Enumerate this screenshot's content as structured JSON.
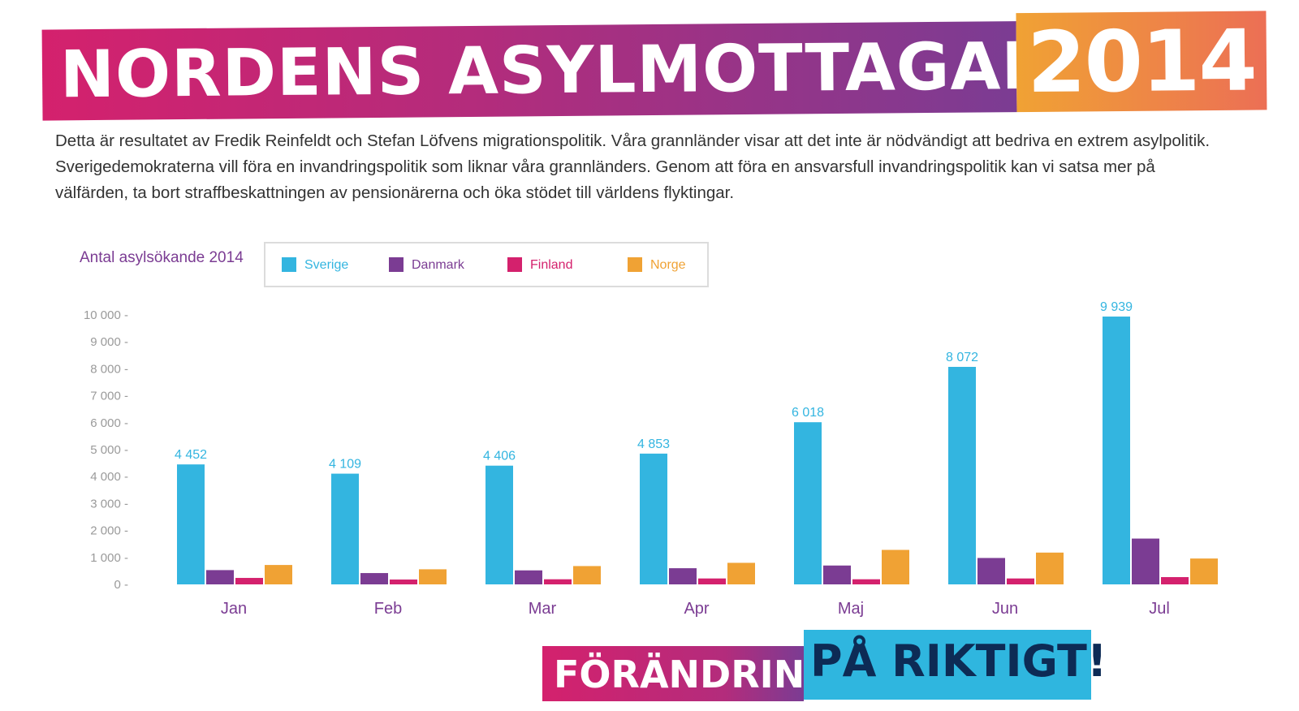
{
  "header": {
    "title": "NORDENS ASYLMOTTAGANDE",
    "year": "2014"
  },
  "intro": "Detta är resultatet av Fredik Reinfeldt och Stefan Löfvens migrationspolitik. Våra grannländer visar att det inte är nödvändigt att bedriva en extrem asylpolitik. Sverigedemokraterna vill föra en invandringspolitik som liknar våra grannländers. Genom att föra en ansvarsfull invandringspolitik kan vi satsa mer på välfärden, ta bort straffbeskattningen av pensionärerna och öka stödet till världens flyktingar.",
  "footer": {
    "left": "FÖRÄNDRING",
    "right": "PÅ RIKTIGT!"
  },
  "chart_data": {
    "type": "bar",
    "ylabel": "Antal asylsökande 2014",
    "ylim": [
      0,
      10000
    ],
    "yticks": [
      "10 000 -",
      "9 000 -",
      "8 000 -",
      "7 000 -",
      "6 000 -",
      "5 000 -",
      "4 000 -",
      "3 000 -",
      "2 000 -",
      "1 000 -",
      "0 -"
    ],
    "ytick_values": [
      10000,
      9000,
      8000,
      7000,
      6000,
      5000,
      4000,
      3000,
      2000,
      1000,
      0
    ],
    "categories": [
      "Jan",
      "Feb",
      "Mar",
      "Apr",
      "Maj",
      "Jun",
      "Jul"
    ],
    "legend_placement": "top-left",
    "grid": false,
    "series": [
      {
        "name": "Sverige",
        "color": "#33b5e0",
        "values": [
          4452,
          4109,
          4406,
          4853,
          6018,
          8072,
          9939
        ],
        "labels": [
          "4 452",
          "4 109",
          "4 406",
          "4 853",
          "6 018",
          "8 072",
          "9 939"
        ]
      },
      {
        "name": "Danmark",
        "color": "#7b3c93",
        "values": [
          530,
          420,
          520,
          600,
          700,
          980,
          1700
        ]
      },
      {
        "name": "Finland",
        "color": "#d4216d",
        "values": [
          240,
          180,
          190,
          220,
          190,
          220,
          270
        ]
      },
      {
        "name": "Norge",
        "color": "#f0a234",
        "values": [
          720,
          560,
          680,
          800,
          1280,
          1180,
          960
        ]
      }
    ]
  }
}
